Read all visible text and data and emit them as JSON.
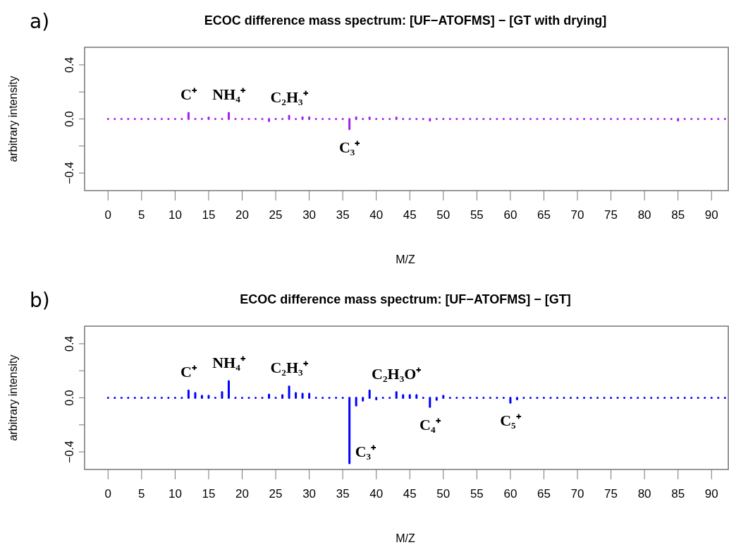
{
  "chart_data": [
    {
      "type": "bar",
      "title": "ECOC difference mass spectrum: [UF−ATOFMS] − [GT with drying]",
      "xlabel": "M/Z",
      "ylabel": "arbitrary intensity",
      "x": [
        0,
        1,
        2,
        3,
        4,
        5,
        6,
        7,
        8,
        9,
        10,
        11,
        12,
        13,
        14,
        15,
        16,
        17,
        18,
        19,
        20,
        21,
        22,
        23,
        24,
        25,
        26,
        27,
        28,
        29,
        30,
        31,
        32,
        33,
        34,
        35,
        36,
        37,
        38,
        39,
        40,
        41,
        42,
        43,
        44,
        45,
        46,
        47,
        48,
        49,
        50,
        51,
        52,
        53,
        54,
        55,
        56,
        57,
        58,
        59,
        60,
        61,
        62,
        63,
        64,
        65,
        66,
        67,
        68,
        69,
        70,
        71,
        72,
        73,
        74,
        75,
        76,
        77,
        78,
        79,
        80,
        81,
        82,
        83,
        84,
        85,
        86,
        87,
        88,
        89,
        90,
        91,
        92
      ],
      "values": [
        0,
        0,
        0,
        0,
        0,
        0,
        0,
        0,
        0,
        0,
        0,
        0,
        0.044,
        0,
        0,
        0.01,
        0,
        0,
        0.044,
        0,
        0,
        0,
        0,
        0,
        -0.014,
        0,
        0,
        0.023,
        0,
        0.012,
        0.012,
        0,
        0,
        0,
        0,
        0,
        -0.075,
        0.012,
        0,
        0.01,
        0,
        0,
        0,
        0.01,
        0,
        0,
        0,
        0,
        -0.01,
        0,
        0,
        0,
        0,
        0,
        0,
        0,
        0,
        0,
        0,
        0,
        0,
        0,
        0,
        0,
        0,
        0,
        0,
        0,
        0,
        0,
        0,
        0,
        0,
        0,
        0,
        0,
        0,
        0,
        0,
        0,
        0,
        0,
        0,
        0,
        0,
        -0.01,
        0,
        0,
        0,
        0,
        0,
        0,
        0
      ],
      "color": "#a020f0",
      "xlim": [
        -3.5,
        92.5
      ],
      "xticks": [
        0,
        5,
        10,
        15,
        20,
        25,
        30,
        35,
        40,
        45,
        50,
        55,
        60,
        65,
        70,
        75,
        80,
        85,
        90
      ],
      "ylim": [
        -0.53,
        0.53
      ],
      "yticks": [
        {
          "value": -0.4,
          "label": "−0.4"
        },
        {
          "value": -0.2,
          "label": null
        },
        {
          "value": 0,
          "label": "0.0"
        },
        {
          "value": 0.2,
          "label": null
        },
        {
          "value": 0.4,
          "label": "0.4"
        }
      ],
      "annotations": [
        "a)",
        {
          "text": "C⁺",
          "x": 12,
          "y": 0.044
        },
        {
          "text": "NH₄⁺",
          "x": 18,
          "y": 0.044
        },
        {
          "text": "C₂H₃⁺",
          "x": 27,
          "y": 0.023
        },
        {
          "text": "C₃⁺",
          "x": 36,
          "y": -0.075
        }
      ]
    },
    {
      "type": "bar",
      "title": "ECOC difference mass spectrum: [UF−ATOFMS] − [GT]",
      "xlabel": "M/Z",
      "ylabel": "arbitrary intensity",
      "x": [
        0,
        1,
        2,
        3,
        4,
        5,
        6,
        7,
        8,
        9,
        10,
        11,
        12,
        13,
        14,
        15,
        16,
        17,
        18,
        19,
        20,
        21,
        22,
        23,
        24,
        25,
        26,
        27,
        28,
        29,
        30,
        31,
        32,
        33,
        34,
        35,
        36,
        37,
        38,
        39,
        40,
        41,
        42,
        43,
        44,
        45,
        46,
        47,
        48,
        49,
        50,
        51,
        52,
        53,
        54,
        55,
        56,
        57,
        58,
        59,
        60,
        61,
        62,
        63,
        64,
        65,
        66,
        67,
        68,
        69,
        70,
        71,
        72,
        73,
        74,
        75,
        76,
        77,
        78,
        79,
        80,
        81,
        82,
        83,
        84,
        85,
        86,
        87,
        88,
        89,
        90,
        91,
        92
      ],
      "values": [
        0,
        0,
        0,
        0,
        0,
        0,
        0,
        0,
        0,
        0,
        0,
        0,
        0.053,
        0.035,
        0.015,
        0.015,
        0,
        0.042,
        0.123,
        0,
        0,
        0,
        0,
        0,
        0.023,
        0,
        0.02,
        0.084,
        0.035,
        0.03,
        0.03,
        0,
        0,
        0,
        0,
        0,
        -0.483,
        -0.056,
        -0.02,
        0.053,
        -0.01,
        0,
        0,
        0.042,
        0.02,
        0.02,
        0.02,
        0,
        -0.067,
        -0.015,
        0.015,
        0,
        0,
        0,
        0,
        0,
        0,
        0,
        0,
        0,
        -0.035,
        -0.01,
        0,
        0,
        0,
        0,
        0,
        0,
        0,
        0,
        0,
        0,
        0,
        0,
        0,
        0,
        0,
        0,
        0,
        0,
        0,
        0,
        0,
        0,
        0,
        0,
        0,
        0,
        0,
        0,
        0,
        0,
        0
      ],
      "color": "#0000ff",
      "xlim": [
        -3.5,
        92.5
      ],
      "xticks": [
        0,
        5,
        10,
        15,
        20,
        25,
        30,
        35,
        40,
        45,
        50,
        55,
        60,
        65,
        70,
        75,
        80,
        85,
        90
      ],
      "ylim": [
        -0.53,
        0.53
      ],
      "yticks": [
        {
          "value": -0.4,
          "label": "−0.4"
        },
        {
          "value": -0.2,
          "label": null
        },
        {
          "value": 0,
          "label": "0.0"
        },
        {
          "value": 0.2,
          "label": null
        },
        {
          "value": 0.4,
          "label": "0.4"
        }
      ],
      "annotations": [
        "b)",
        {
          "text": "C⁺",
          "x": 12,
          "y": 0.053
        },
        {
          "text": "NH₄⁺",
          "x": 18,
          "y": 0.123
        },
        {
          "text": "C₂H₃⁺",
          "x": 27,
          "y": 0.084
        },
        {
          "text": "C₃⁺",
          "x": 36,
          "y": -0.483
        },
        {
          "text": "C₂H₃O⁺",
          "x": 43,
          "y": 0.042
        },
        {
          "text": "C₄⁺",
          "x": 48,
          "y": -0.067
        },
        {
          "text": "C₅⁺",
          "x": 60,
          "y": -0.035
        }
      ]
    }
  ]
}
